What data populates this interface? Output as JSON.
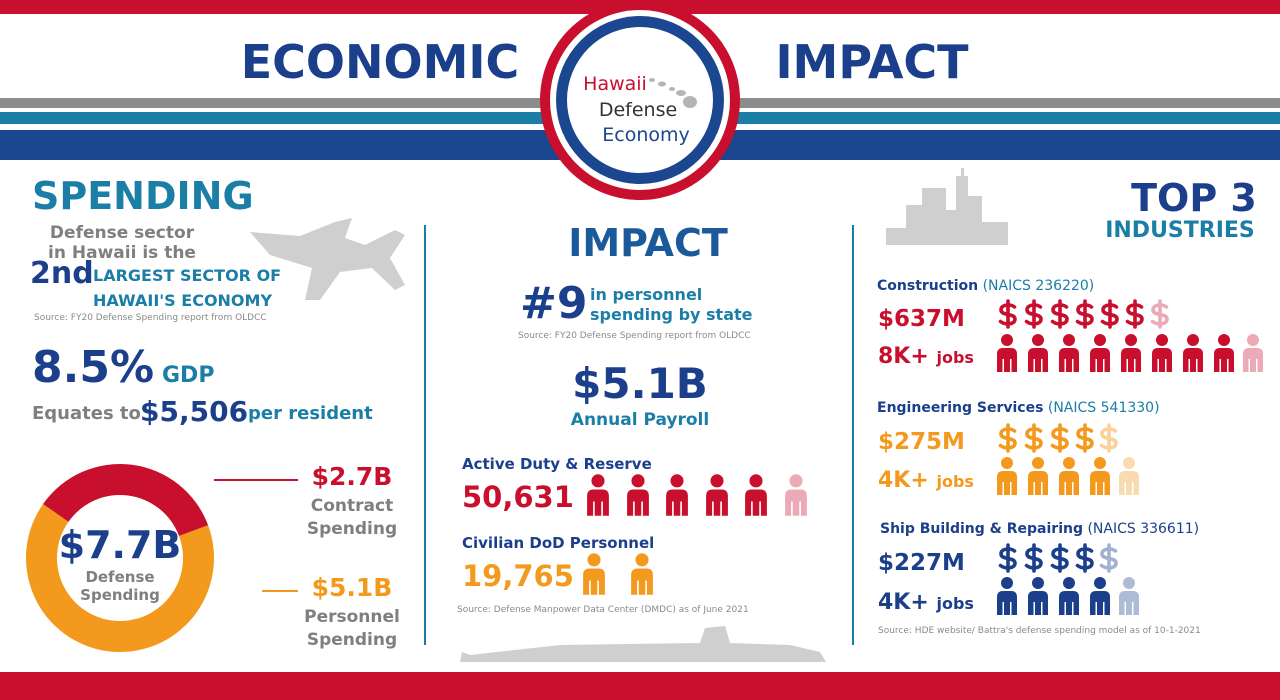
{
  "header": {
    "title_left": "ECONOMIC",
    "title_right": "IMPACT",
    "logo": [
      "Hawaii",
      "Defense",
      "Economy"
    ]
  },
  "spending": {
    "heading": "SPENDING",
    "intro": [
      "Defense sector",
      "in Hawaii is the"
    ],
    "rank": "2nd",
    "rank_text": [
      "LARGEST SECTOR OF",
      "HAWAII'S ECONOMY"
    ],
    "source": "Source: FY20 Defense Spending report from OLDCC",
    "gdp": "8.5%",
    "gdp_label": "GDP",
    "per_resident_prefix": "Equates to",
    "per_resident": "$5,506",
    "per_resident_suffix": "per resident",
    "donut": {
      "type": "donut",
      "total": "$7.7B",
      "total_label": [
        "Defense",
        "Spending"
      ],
      "segments": [
        {
          "value": 2.7,
          "value_label": "$2.7B",
          "label": [
            "Contract",
            "Spending"
          ],
          "color": "#c8102e"
        },
        {
          "value": 5.1,
          "value_label": "$5.1B",
          "label": [
            "Personnel",
            "Spending"
          ],
          "color": "#f39a1e"
        }
      ]
    }
  },
  "impact": {
    "heading": "IMPACT",
    "rank": "#9",
    "rank_text": [
      "in personnel",
      "spending by state"
    ],
    "source": "Source: FY20 Defense Spending report from OLDCC",
    "payroll": "$5.1B",
    "payroll_label": "Annual Payroll",
    "groups": [
      {
        "label": "Active Duty & Reserve",
        "count": "50,631"
      },
      {
        "label": "Civilian DoD Personnel",
        "count": "19,765"
      }
    ],
    "source2": "Source: Defense Manpower Data Center (DMDC) as of June 2021"
  },
  "industries": {
    "heading": [
      "TOP 3",
      "INDUSTRIES"
    ],
    "items": [
      {
        "name": "Construction",
        "naics": "(NAICS 236220)",
        "spending": "$637M",
        "jobs": "8K+",
        "jobs_unit": "jobs"
      },
      {
        "name": "Engineering Services",
        "naics": "(NAICS 541330)",
        "spending": "$275M",
        "jobs": "4K+",
        "jobs_unit": "jobs"
      },
      {
        "name": "Ship Building & Repairing",
        "naics": "(NAICS 336611)",
        "spending": "$227M",
        "jobs": "4K+",
        "jobs_unit": "jobs"
      }
    ],
    "source": "Source:  HDE website/ Battra's defense spending model as of 10-1-2021"
  }
}
